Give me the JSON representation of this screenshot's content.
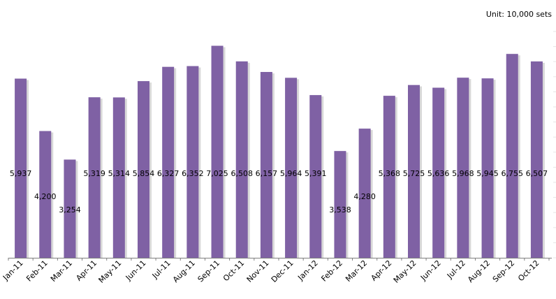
{
  "chart_data": {
    "type": "bar",
    "unit_label": "Unit: 10,000 sets",
    "title": "",
    "xlabel": "",
    "ylabel": "",
    "categories": [
      "Jan-11",
      "Feb-11",
      "Mar-11",
      "Apr-11",
      "May-11",
      "Jun-11",
      "Jul-11",
      "Aug-11",
      "Sep-11",
      "Oct-11",
      "Nov-11",
      "Dec-11",
      "Jan-12",
      "Feb-12",
      "Mar-12",
      "Apr-12",
      "May-12",
      "Jun-12",
      "Jul-12",
      "Aug-12",
      "Sep-12",
      "Oct-12"
    ],
    "values": [
      5937,
      4200,
      3254,
      5319,
      5314,
      5854,
      6327,
      6352,
      7025,
      6508,
      6157,
      5964,
      5391,
      3538,
      4280,
      5368,
      5725,
      5636,
      5968,
      5945,
      6755,
      6507
    ],
    "data_labels": [
      "5,937",
      "4,200",
      "3,254",
      "5,319",
      "5,314",
      "5,854",
      "6,327",
      "6,352",
      "7,025",
      "6,508",
      "6,157",
      "5,964",
      "5,391",
      "3,538",
      "4,280",
      "5,368",
      "5,725",
      "5,636",
      "5,968",
      "5,945",
      "6,755",
      "6,507"
    ],
    "ylim": [
      0,
      7500
    ],
    "bar_color": "#7f61a4",
    "shadow_color": "#d8d8d8",
    "axis_color": "#7f7f7f",
    "grid": false,
    "legend": "none"
  }
}
